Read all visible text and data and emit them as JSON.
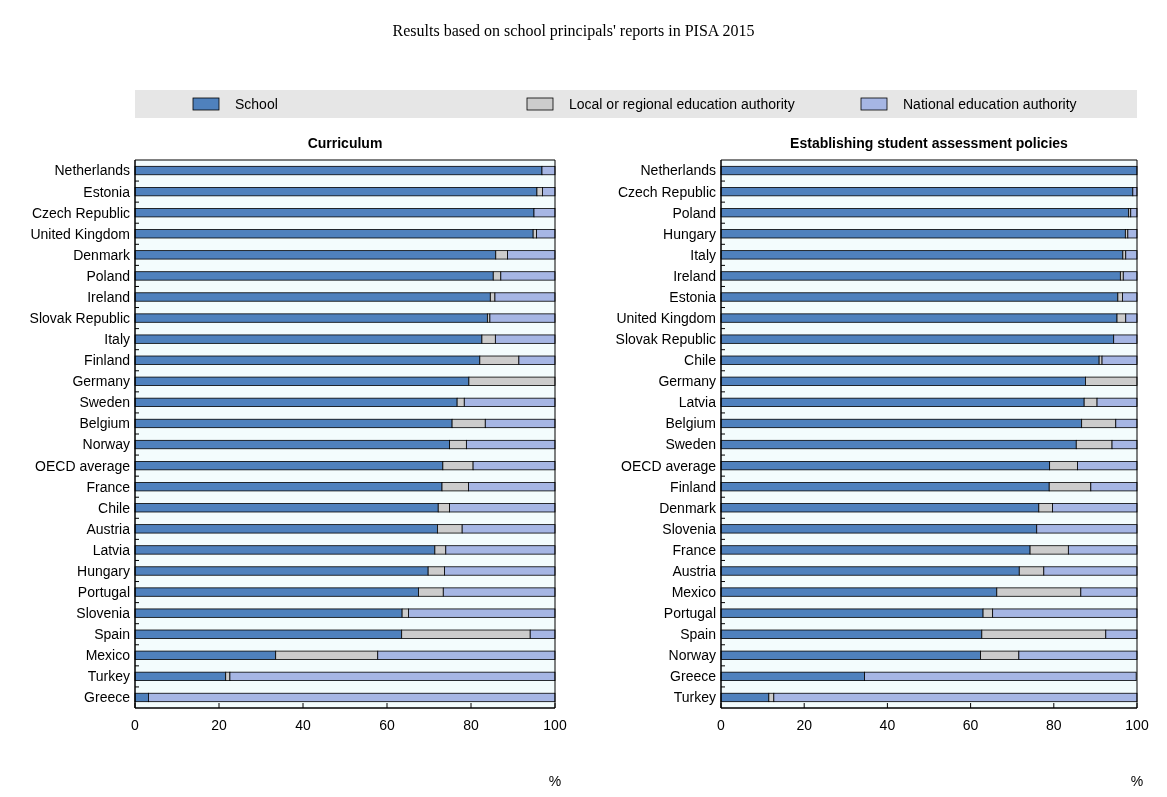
{
  "chart_data": [
    {
      "type": "bar",
      "orientation": "horizontal",
      "stacked": true,
      "subtitle": "Results based on school principals' reports in PISA 2015",
      "title": "Curriculum",
      "xlabel": "%",
      "legend": "top",
      "xlim": [
        0,
        100
      ],
      "xticks": [
        0,
        20,
        40,
        60,
        80,
        100
      ],
      "categories": [
        "Netherlands",
        "Estonia",
        "Czech Republic",
        "United Kingdom",
        "Denmark",
        "Poland",
        "Ireland",
        "Slovak Republic",
        "Italy",
        "Finland",
        "Germany",
        "Sweden",
        "Belgium",
        "Norway",
        "OECD average",
        "France",
        "Chile",
        "Austria",
        "Latvia",
        "Hungary",
        "Portugal",
        "Slovenia",
        "Spain",
        "Mexico",
        "Turkey",
        "Greece"
      ],
      "series": [
        {
          "name": "School",
          "color": "#4f81bd",
          "values": [
            96.9,
            95.7,
            95.0,
            94.8,
            85.9,
            85.3,
            84.6,
            83.9,
            82.6,
            82.1,
            79.5,
            76.7,
            75.5,
            74.9,
            73.3,
            73.1,
            72.2,
            72.0,
            71.4,
            69.8,
            67.5,
            63.6,
            63.5,
            33.5,
            21.6,
            3.2
          ]
        },
        {
          "name": "Local or regional education authority",
          "color": "#cccccc",
          "values": [
            0,
            1.3,
            0,
            0.8,
            2.8,
            1.8,
            1.1,
            0.6,
            3.2,
            9.3,
            20.5,
            1.7,
            7.9,
            4.0,
            7.2,
            6.3,
            2.7,
            5.9,
            2.6,
            3.9,
            5.9,
            1.5,
            30.6,
            24.3,
            1.0,
            0
          ]
        },
        {
          "name": "National education authority",
          "color": "#a6b6e4",
          "values": [
            3.1,
            3.0,
            5.0,
            4.4,
            11.3,
            12.9,
            14.3,
            15.5,
            14.2,
            8.6,
            0,
            21.6,
            16.6,
            21.1,
            19.5,
            20.6,
            25.1,
            22.1,
            26.0,
            26.3,
            26.6,
            34.9,
            5.9,
            42.2,
            77.4,
            96.8
          ]
        }
      ]
    },
    {
      "type": "bar",
      "orientation": "horizontal",
      "stacked": true,
      "title": "Establishing student assessment policies",
      "xlabel": "%",
      "xlim": [
        0,
        100
      ],
      "xticks": [
        0,
        20,
        40,
        60,
        80,
        100
      ],
      "categories": [
        "Netherlands",
        "Czech Republic",
        "Poland",
        "Hungary",
        "Italy",
        "Ireland",
        "Estonia",
        "United Kingdom",
        "Slovak Republic",
        "Chile",
        "Germany",
        "Latvia",
        "Belgium",
        "Sweden",
        "OECD average",
        "Finland",
        "Denmark",
        "Slovenia",
        "France",
        "Austria",
        "Mexico",
        "Portugal",
        "Spain",
        "Norway",
        "Greece",
        "Turkey"
      ],
      "series": [
        {
          "color": "#4f81bd",
          "values": [
            100,
            99.0,
            98.0,
            97.2,
            96.6,
            96.0,
            95.4,
            95.2,
            94.4,
            90.9,
            87.6,
            87.3,
            86.7,
            85.4,
            79.0,
            78.9,
            76.4,
            75.9,
            74.3,
            71.7,
            66.3,
            63.0,
            62.7,
            62.4,
            34.5,
            11.5
          ]
        },
        {
          "color": "#cccccc",
          "values": [
            0,
            0,
            0.5,
            0.6,
            0.7,
            0.7,
            1.1,
            2.1,
            0,
            0.7,
            12.4,
            3.1,
            8.2,
            8.6,
            6.7,
            10.0,
            3.3,
            0,
            9.2,
            5.9,
            20.2,
            2.3,
            29.8,
            9.2,
            null,
            1.2
          ]
        },
        {
          "color": "#a6b6e4",
          "values": [
            0,
            1.0,
            1.5,
            2.2,
            2.7,
            3.3,
            3.5,
            2.7,
            5.6,
            8.4,
            0,
            9.6,
            5.1,
            6.0,
            14.3,
            11.1,
            20.3,
            24.1,
            16.5,
            22.4,
            13.5,
            34.7,
            7.5,
            28.4,
            65.3,
            87.3
          ]
        }
      ]
    }
  ]
}
